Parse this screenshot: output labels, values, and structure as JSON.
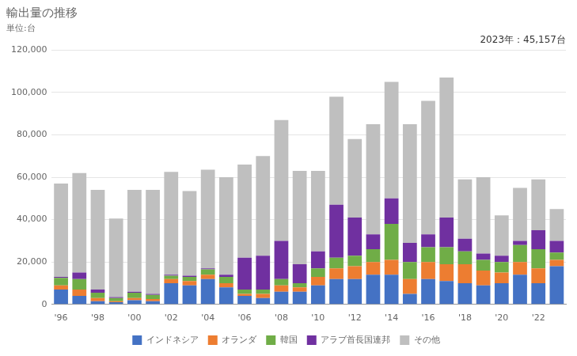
{
  "chart_data": {
    "type": "bar",
    "stacked": true,
    "title": "輸出量の推移",
    "subtitle": "単位:台",
    "annotations": [
      "2023年：45,157台"
    ],
    "categories": [
      "'96",
      null,
      "'98",
      null,
      "'00",
      null,
      "'02",
      null,
      "'04",
      null,
      "'06",
      null,
      "'08",
      null,
      "'10",
      null,
      "'12",
      null,
      "'14",
      null,
      "'16",
      null,
      "'18",
      null,
      "'20",
      null,
      "'22",
      null
    ],
    "series": [
      {
        "name": "インドネシア",
        "color": "#4472C4",
        "values": [
          7000,
          4000,
          1500,
          1000,
          2000,
          1500,
          10000,
          9000,
          12000,
          8000,
          4000,
          3000,
          6000,
          6000,
          9000,
          12000,
          12000,
          14000,
          14000,
          5000,
          12000,
          11000,
          10000,
          9000,
          10000,
          14000,
          10000,
          18000
        ]
      },
      {
        "name": "オランダ",
        "color": "#ED7D31",
        "values": [
          2000,
          3000,
          1500,
          500,
          1000,
          1000,
          2000,
          2000,
          2000,
          2000,
          1000,
          2000,
          3000,
          2000,
          4000,
          5000,
          6000,
          6000,
          7000,
          7000,
          8000,
          8000,
          9000,
          7000,
          5000,
          6000,
          7000,
          3000
        ]
      },
      {
        "name": "韓国",
        "color": "#70AD47",
        "values": [
          3500,
          5000,
          2500,
          1500,
          2500,
          2000,
          1500,
          2000,
          2500,
          3000,
          2000,
          2000,
          3000,
          2000,
          4000,
          5000,
          5000,
          6000,
          17000,
          8000,
          7000,
          8000,
          6000,
          5000,
          5000,
          8000,
          9000,
          3500
        ]
      },
      {
        "name": "アラブ首長国連邦",
        "color": "#7030A0",
        "values": [
          500,
          3000,
          1500,
          500,
          500,
          500,
          500,
          500,
          500,
          1000,
          15000,
          16000,
          18000,
          9000,
          8000,
          25000,
          18000,
          7000,
          12000,
          9000,
          6000,
          14000,
          6000,
          3000,
          3000,
          2000,
          9000,
          5500
        ]
      },
      {
        "name": "その他",
        "color": "#BFBFBF",
        "values": [
          44000,
          47000,
          47000,
          37000,
          48000,
          49000,
          48500,
          40000,
          46500,
          46000,
          44000,
          47000,
          57000,
          44000,
          38000,
          51000,
          37000,
          52000,
          55000,
          56000,
          63000,
          66000,
          28000,
          36000,
          19000,
          25000,
          24000,
          15000
        ]
      }
    ],
    "ylim": [
      0,
      120000
    ],
    "yticks": [
      0,
      {
        "value": 20000,
        "label": "20,000"
      },
      {
        "value": 40000,
        "label": "40,000"
      },
      {
        "value": 60000,
        "label": "60,000"
      },
      {
        "value": 80000,
        "label": "80,000"
      },
      {
        "value": 100000,
        "label": "100,000"
      },
      {
        "value": 120000,
        "label": "120,000"
      }
    ],
    "grid": true,
    "legend": "bottom"
  }
}
